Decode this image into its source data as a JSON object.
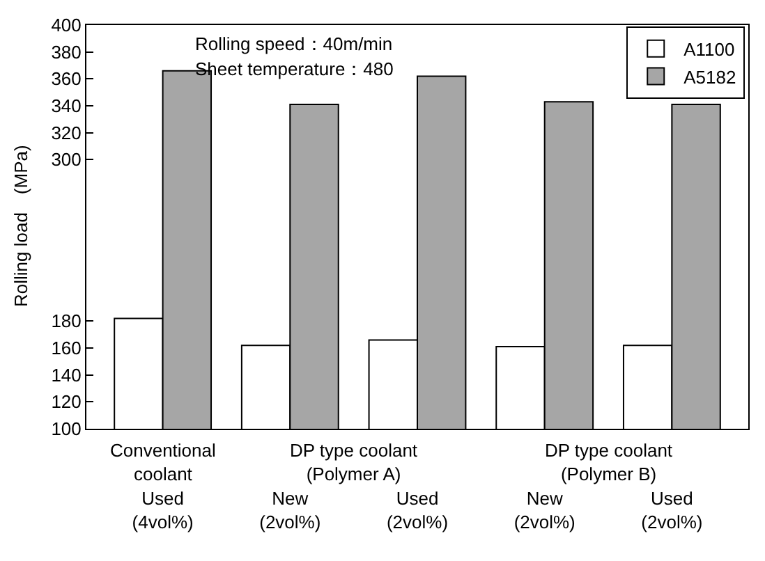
{
  "chart_data": {
    "type": "bar",
    "ylabel": "Rolling load　(MPa)",
    "categories": [
      "Used\n(4vol%)",
      "New\n(2vol%)",
      "Used\n(2vol%)",
      "New\n(2vol%)",
      "Used\n(2vol%)"
    ],
    "series": [
      {
        "name": "A1100",
        "color": "#ffffff",
        "values": [
          182,
          162,
          166,
          161,
          162
        ]
      },
      {
        "name": "A5182",
        "color": "#a6a6a6",
        "values": [
          366,
          341,
          362,
          343,
          341
        ]
      }
    ],
    "ylim": [
      100,
      400
    ],
    "yticks": [
      100,
      120,
      140,
      160,
      180,
      300,
      320,
      340,
      360,
      380,
      400
    ],
    "annotations": [
      "Rolling speed：40m/min",
      "Sheet temperature：480",
      "Conventional\ncoolant",
      "DP type coolant\n(Polymer A)",
      "DP type coolant\n(Polymer B)"
    ],
    "grid": false,
    "legend": "top right"
  }
}
